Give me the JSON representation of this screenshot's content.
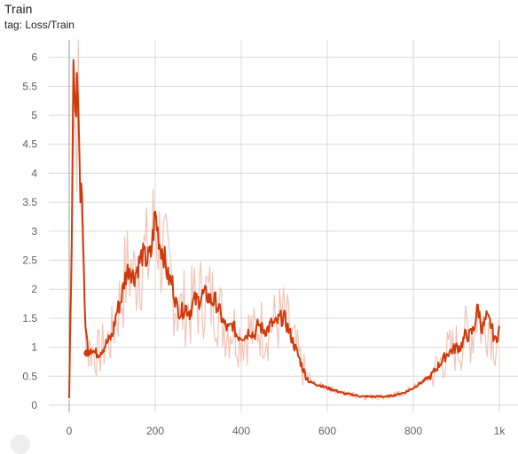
{
  "card": {
    "title": "Train",
    "tag": "tag: Loss/Train"
  },
  "colors": {
    "smoothed": "#cf3a0c",
    "raw": "#f4c3b6",
    "grid": "#d9d9d9",
    "tick": "#616161"
  },
  "chart_data": {
    "type": "line",
    "title": "Train",
    "xlabel": "",
    "ylabel": "",
    "xlim": [
      0,
      1000
    ],
    "ylim": [
      0,
      6.3
    ],
    "grid": true,
    "x_ticks": [
      0,
      200,
      400,
      600,
      800,
      1000
    ],
    "x_tick_labels": [
      "0",
      "200",
      "400",
      "600",
      "800",
      "1k"
    ],
    "y_ticks": [
      0,
      0.5,
      1,
      1.5,
      2,
      2.5,
      3,
      3.5,
      4,
      4.5,
      5,
      5.5,
      6
    ],
    "y_tick_labels": [
      "0",
      "0.5",
      "1",
      "1.5",
      "2",
      "2.5",
      "3",
      "3.5",
      "4",
      "4.5",
      "5",
      "5.5",
      "6"
    ],
    "series": [
      {
        "name": "",
        "style": "smoothed",
        "x": [
          0,
          5,
          10,
          15,
          20,
          25,
          30,
          35,
          40,
          45,
          50,
          60,
          70,
          80,
          90,
          100,
          110,
          120,
          130,
          140,
          150,
          160,
          170,
          180,
          190,
          200,
          210,
          220,
          230,
          240,
          250,
          260,
          270,
          280,
          290,
          300,
          310,
          320,
          330,
          340,
          350,
          360,
          370,
          380,
          390,
          400,
          410,
          420,
          430,
          440,
          450,
          460,
          470,
          480,
          490,
          500,
          510,
          520,
          530,
          540,
          550,
          560,
          580,
          600,
          620,
          640,
          660,
          680,
          700,
          720,
          740,
          760,
          780,
          800,
          820,
          840,
          860,
          880,
          890,
          900,
          910,
          920,
          930,
          940,
          950,
          960,
          970,
          980,
          990,
          1000
        ],
        "y": [
          0.1,
          2.5,
          5.5,
          4.7,
          5.8,
          3.8,
          3.7,
          1.8,
          1.2,
          0.9,
          1.0,
          0.9,
          0.9,
          1.0,
          1.1,
          1.2,
          1.6,
          1.8,
          2.2,
          2.4,
          2.2,
          2.4,
          2.6,
          2.5,
          2.6,
          3.3,
          2.8,
          2.6,
          2.2,
          2.1,
          1.7,
          1.6,
          1.7,
          1.6,
          1.8,
          1.8,
          1.9,
          1.9,
          1.8,
          1.8,
          1.6,
          1.4,
          1.3,
          1.4,
          1.2,
          1.2,
          1.2,
          1.3,
          1.2,
          1.4,
          1.3,
          1.3,
          1.4,
          1.4,
          1.5,
          1.5,
          1.3,
          1.1,
          0.9,
          0.7,
          0.5,
          0.4,
          0.35,
          0.3,
          0.25,
          0.2,
          0.18,
          0.15,
          0.15,
          0.15,
          0.15,
          0.18,
          0.22,
          0.3,
          0.4,
          0.5,
          0.7,
          0.9,
          0.95,
          1.0,
          1.0,
          1.2,
          1.2,
          1.3,
          1.7,
          1.3,
          1.5,
          1.4,
          1.1,
          1.3
        ]
      }
    ],
    "marker": {
      "x": 42,
      "y": 0.9
    }
  }
}
